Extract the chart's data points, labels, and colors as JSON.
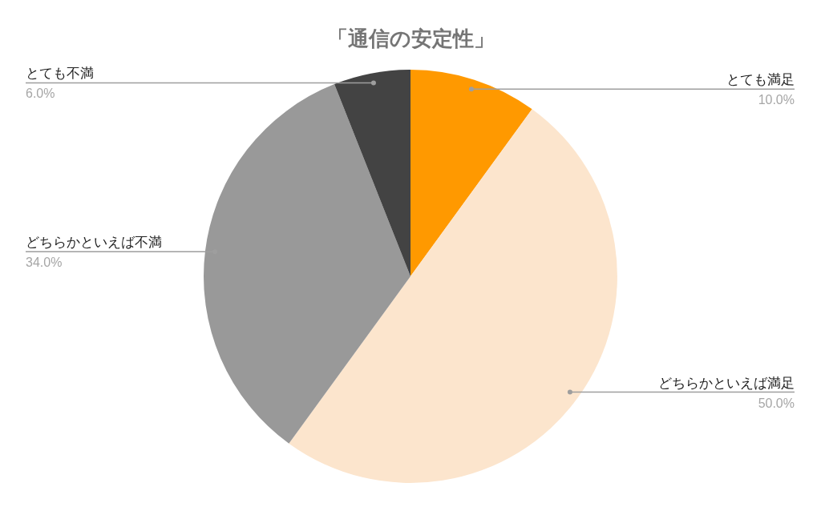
{
  "chart_data": {
    "type": "pie",
    "title": "「通信の安定性」",
    "categories": [
      "とても満足",
      "どちらかといえば満足",
      "どちらかといえば不満",
      "とても不満"
    ],
    "values": [
      10,
      50,
      34,
      6
    ],
    "colors": [
      "#ff9900",
      "#fce5cd",
      "#999999",
      "#434343"
    ],
    "value_labels": [
      "10.0%",
      "50.0%",
      "34.0%",
      "6.0%"
    ]
  }
}
